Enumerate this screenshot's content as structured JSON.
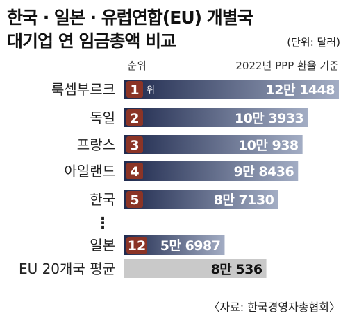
{
  "header": {
    "title_line1": "한국 · 일본 · 유럽연합(EU) 개별국",
    "title_line2": "대기업 연 임금총액 비교",
    "unit_note": "(단위: 달러)"
  },
  "source": "〈자료: 한국경영자총협회〉",
  "colors": {
    "bar_gradient_start": "#1f2a4e",
    "bar_gradient_end": "#a3adc4",
    "rank_badge": "#8b3426",
    "eu_bar": "#c9c9c9",
    "eu_value_text": "#111111"
  },
  "chart_data": {
    "type": "bar",
    "orientation": "horizontal",
    "rank_header": "순위",
    "value_header": "2022년 PPP 환율 기준",
    "first_rank_suffix": "위",
    "ellipsis": "⋮",
    "categories": [
      "룩셈부르크",
      "독일",
      "프랑스",
      "아일랜드",
      "한국",
      "일본",
      "EU 20개국 평균"
    ],
    "ranks": [
      "1",
      "2",
      "3",
      "4",
      "5",
      "12",
      ""
    ],
    "values": [
      121448,
      103933,
      100938,
      98436,
      87130,
      56987,
      80536
    ],
    "value_labels": [
      "12만 1448",
      "10만 3933",
      "10만 938",
      "9만 8436",
      "8만 7130",
      "5만 6987",
      "8만 536"
    ],
    "ellipsis_after_index": 4,
    "average_index": 6
  }
}
